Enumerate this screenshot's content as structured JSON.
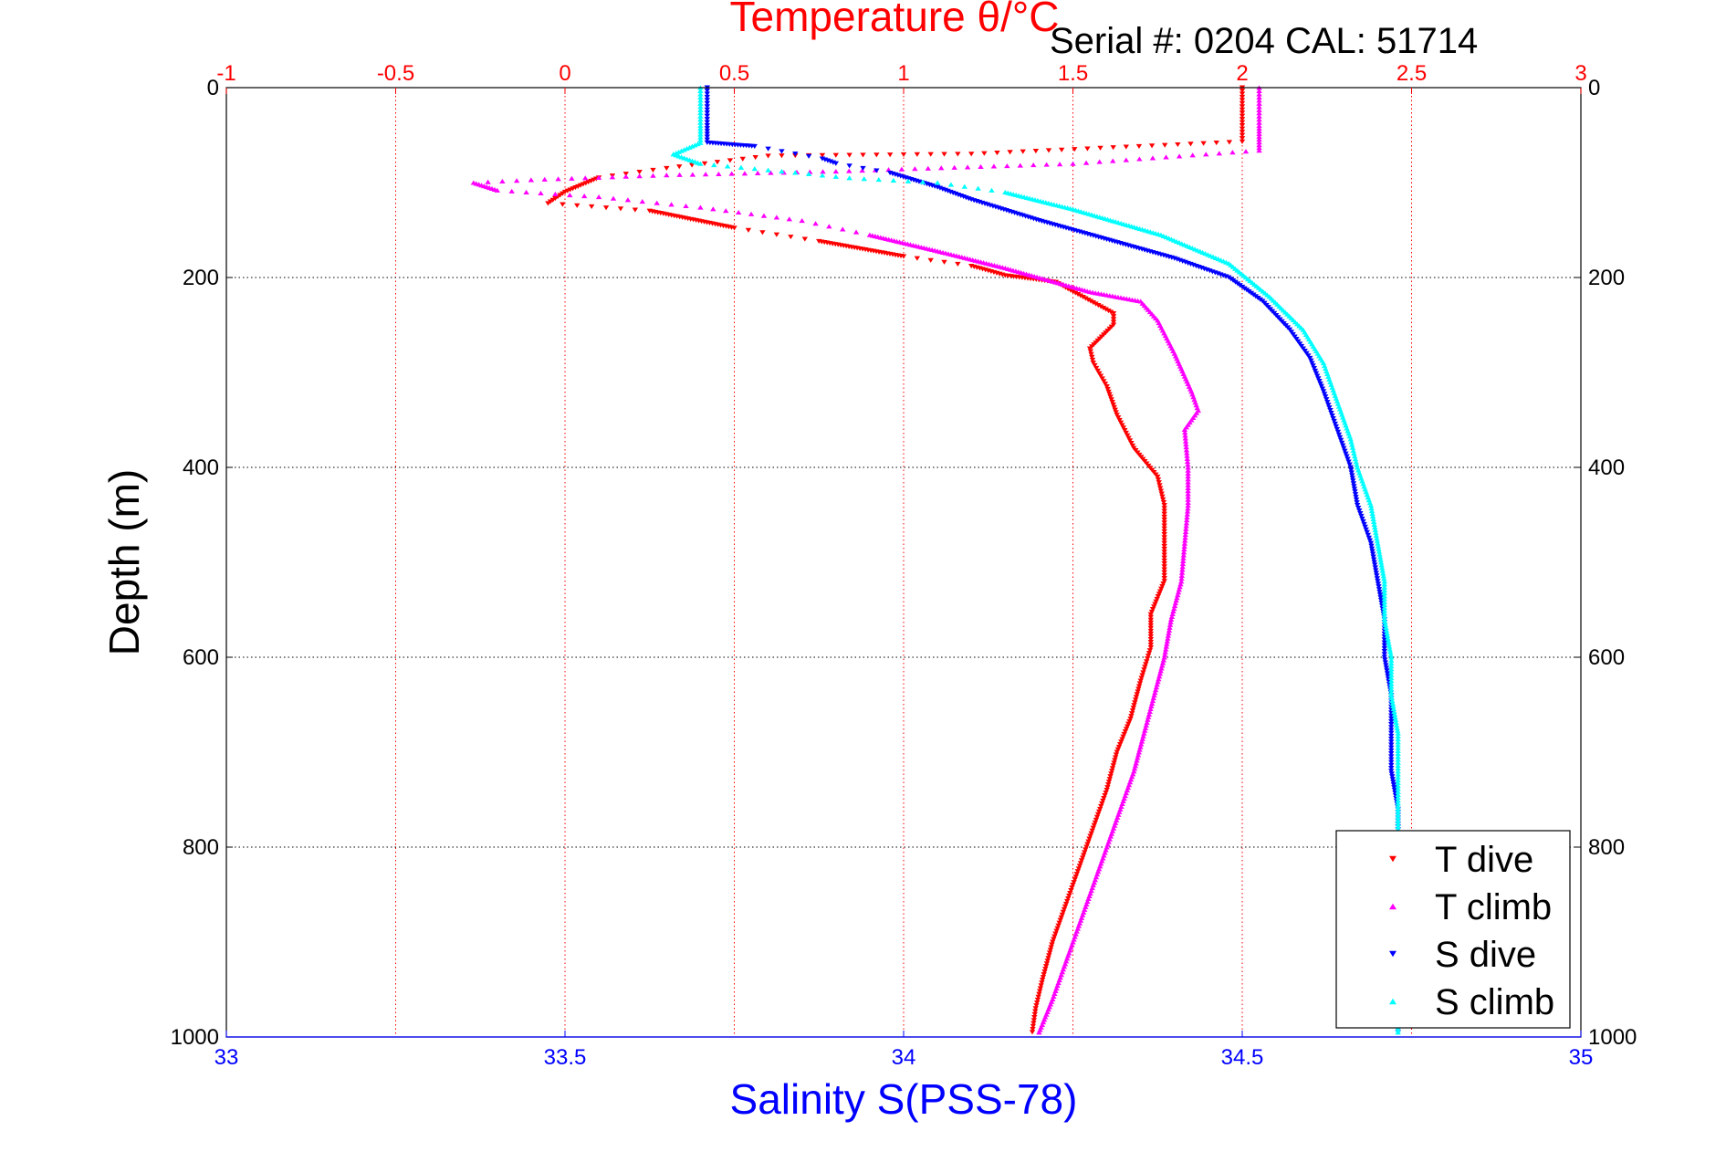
{
  "chart_data": {
    "type": "scatter",
    "title": "Temperature θ/°C",
    "annotation": "Serial #: 0204  CAL: 51714",
    "top_axis": {
      "label": "Temperature θ/°C",
      "range": [
        -1,
        3
      ],
      "ticks": [
        -1,
        -0.5,
        0,
        0.5,
        1,
        1.5,
        2,
        2.5,
        3
      ],
      "tick_labels": [
        "-1",
        "-0.5",
        "0",
        "0.5",
        "1",
        "1.5",
        "2",
        "2.5",
        "3"
      ],
      "color": "#ff0000"
    },
    "bottom_axis": {
      "label": "Salinity S(PSS-78)",
      "range": [
        33,
        35
      ],
      "ticks": [
        33,
        33.5,
        34,
        34.5,
        35
      ],
      "tick_labels": [
        "33",
        "33.5",
        "34",
        "34.5",
        "35"
      ],
      "color": "#0000ff"
    },
    "y_axis": {
      "label": "Depth (m)",
      "range": [
        0,
        1000
      ],
      "reversed": true,
      "ticks": [
        0,
        200,
        400,
        600,
        800,
        1000
      ],
      "tick_labels": [
        "0",
        "200",
        "400",
        "600",
        "800",
        "1000"
      ]
    },
    "grid": true,
    "legend": {
      "placement": "bottom-right",
      "entries": [
        {
          "label": "T dive",
          "color": "#ff0000",
          "marker": "down-triangle"
        },
        {
          "label": "T climb",
          "color": "#ff00ff",
          "marker": "up-triangle"
        },
        {
          "label": "S dive",
          "color": "#0000ff",
          "marker": "down-triangle"
        },
        {
          "label": "S climb",
          "color": "#00ffff",
          "marker": "up-triangle"
        }
      ]
    },
    "series": [
      {
        "name": "T dive",
        "axis": "top",
        "color": "#ff0000",
        "marker": "down-triangle",
        "points": [
          [
            2.0,
            0
          ],
          [
            2.0,
            20
          ],
          [
            2.0,
            40
          ],
          [
            2.0,
            57
          ],
          [
            1.2,
            70
          ],
          [
            0.6,
            72
          ],
          [
            0.3,
            85
          ],
          [
            0.1,
            95
          ],
          [
            0.0,
            110
          ],
          [
            -0.05,
            122
          ],
          [
            0.25,
            130
          ],
          [
            0.5,
            148
          ],
          [
            0.75,
            162
          ],
          [
            1.0,
            178
          ],
          [
            1.2,
            188
          ],
          [
            1.3,
            198
          ],
          [
            1.45,
            205
          ],
          [
            1.5,
            215
          ],
          [
            1.62,
            238
          ],
          [
            1.62,
            250
          ],
          [
            1.55,
            275
          ],
          [
            1.56,
            290
          ],
          [
            1.6,
            315
          ],
          [
            1.63,
            345
          ],
          [
            1.68,
            380
          ],
          [
            1.75,
            410
          ],
          [
            1.77,
            440
          ],
          [
            1.77,
            480
          ],
          [
            1.77,
            520
          ],
          [
            1.73,
            555
          ],
          [
            1.73,
            590
          ],
          [
            1.7,
            625
          ],
          [
            1.67,
            665
          ],
          [
            1.63,
            700
          ],
          [
            1.6,
            740
          ],
          [
            1.56,
            780
          ],
          [
            1.52,
            820
          ],
          [
            1.48,
            860
          ],
          [
            1.44,
            900
          ],
          [
            1.41,
            940
          ],
          [
            1.39,
            970
          ],
          [
            1.38,
            995
          ]
        ]
      },
      {
        "name": "T climb",
        "axis": "top",
        "color": "#ff00ff",
        "marker": "up-triangle",
        "points": [
          [
            2.05,
            0
          ],
          [
            2.05,
            20
          ],
          [
            2.05,
            40
          ],
          [
            2.05,
            66
          ],
          [
            1.5,
            80
          ],
          [
            0.8,
            88
          ],
          [
            0.3,
            92
          ],
          [
            -0.1,
            97
          ],
          [
            -0.27,
            100
          ],
          [
            -0.2,
            108
          ],
          [
            0.1,
            115
          ],
          [
            0.4,
            126
          ],
          [
            0.7,
            140
          ],
          [
            0.9,
            155
          ],
          [
            1.1,
            172
          ],
          [
            1.3,
            190
          ],
          [
            1.55,
            215
          ],
          [
            1.7,
            225
          ],
          [
            1.75,
            245
          ],
          [
            1.8,
            280
          ],
          [
            1.85,
            320
          ],
          [
            1.87,
            340
          ],
          [
            1.83,
            360
          ],
          [
            1.84,
            400
          ],
          [
            1.84,
            440
          ],
          [
            1.83,
            480
          ],
          [
            1.82,
            520
          ],
          [
            1.79,
            560
          ],
          [
            1.77,
            600
          ],
          [
            1.74,
            640
          ],
          [
            1.71,
            680
          ],
          [
            1.68,
            720
          ],
          [
            1.64,
            760
          ],
          [
            1.6,
            800
          ],
          [
            1.56,
            840
          ],
          [
            1.52,
            880
          ],
          [
            1.48,
            920
          ],
          [
            1.44,
            960
          ],
          [
            1.4,
            995
          ]
        ]
      },
      {
        "name": "S dive",
        "axis": "bottom",
        "color": "#0000ff",
        "marker": "down-triangle",
        "points": [
          [
            33.71,
            0
          ],
          [
            33.71,
            20
          ],
          [
            33.71,
            40
          ],
          [
            33.71,
            58
          ],
          [
            33.78,
            62
          ],
          [
            33.88,
            75
          ],
          [
            33.9,
            80
          ],
          [
            33.98,
            90
          ],
          [
            34.05,
            105
          ],
          [
            34.1,
            118
          ],
          [
            34.2,
            140
          ],
          [
            34.3,
            160
          ],
          [
            34.4,
            180
          ],
          [
            34.48,
            200
          ],
          [
            34.53,
            225
          ],
          [
            34.57,
            255
          ],
          [
            34.6,
            285
          ],
          [
            34.62,
            320
          ],
          [
            34.64,
            360
          ],
          [
            34.66,
            400
          ],
          [
            34.67,
            440
          ],
          [
            34.69,
            480
          ],
          [
            34.7,
            520
          ],
          [
            34.71,
            560
          ],
          [
            34.71,
            600
          ],
          [
            34.72,
            640
          ],
          [
            34.72,
            680
          ],
          [
            34.72,
            720
          ],
          [
            34.73,
            760
          ],
          [
            34.73,
            800
          ],
          [
            34.73,
            840
          ],
          [
            34.73,
            880
          ],
          [
            34.73,
            920
          ],
          [
            34.73,
            960
          ],
          [
            34.73,
            995
          ]
        ]
      },
      {
        "name": "S climb",
        "axis": "bottom",
        "color": "#00ffff",
        "marker": "up-triangle",
        "points": [
          [
            33.7,
            0
          ],
          [
            33.7,
            20
          ],
          [
            33.7,
            40
          ],
          [
            33.7,
            58
          ],
          [
            33.66,
            70
          ],
          [
            33.7,
            80
          ],
          [
            33.82,
            88
          ],
          [
            33.92,
            95
          ],
          [
            34.05,
            100
          ],
          [
            34.15,
            110
          ],
          [
            34.25,
            128
          ],
          [
            34.38,
            155
          ],
          [
            34.48,
            185
          ],
          [
            34.54,
            220
          ],
          [
            34.59,
            255
          ],
          [
            34.62,
            290
          ],
          [
            34.64,
            330
          ],
          [
            34.66,
            370
          ],
          [
            34.67,
            400
          ],
          [
            34.69,
            440
          ],
          [
            34.7,
            480
          ],
          [
            34.71,
            520
          ],
          [
            34.71,
            560
          ],
          [
            34.72,
            600
          ],
          [
            34.72,
            640
          ],
          [
            34.73,
            680
          ],
          [
            34.73,
            720
          ],
          [
            34.73,
            760
          ],
          [
            34.73,
            800
          ],
          [
            34.73,
            840
          ],
          [
            34.73,
            880
          ],
          [
            34.73,
            920
          ],
          [
            34.73,
            960
          ],
          [
            34.73,
            995
          ]
        ]
      }
    ]
  }
}
